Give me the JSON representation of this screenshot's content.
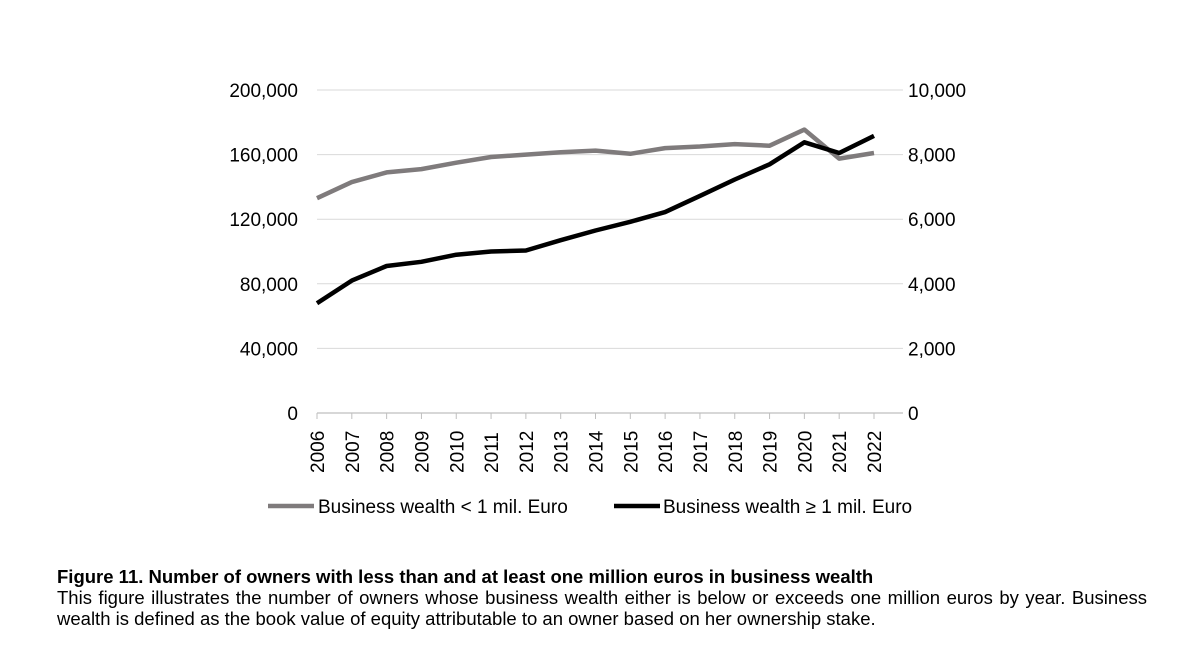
{
  "chart_data": {
    "type": "line",
    "x": [
      2006,
      2007,
      2008,
      2009,
      2010,
      2011,
      2012,
      2013,
      2014,
      2015,
      2016,
      2017,
      2018,
      2019,
      2020,
      2021,
      2022
    ],
    "x_tick_labels": [
      "2006",
      "2007",
      "2008",
      "2009",
      "2010",
      "2011",
      "2012",
      "2013",
      "2014",
      "2015",
      "2016",
      "2017",
      "2018",
      "2019",
      "2020",
      "2021",
      "2022"
    ],
    "y_left_ticks": [
      0,
      40000,
      80000,
      120000,
      160000,
      200000
    ],
    "y_left_tick_labels": [
      "0",
      "40,000",
      "80,000",
      "120,000",
      "160,000",
      "200,000"
    ],
    "y_right_ticks": [
      0,
      2000,
      4000,
      6000,
      8000,
      10000
    ],
    "y_right_tick_labels": [
      "0",
      "2,000",
      "4,000",
      "6,000",
      "8,000",
      "10,000"
    ],
    "ylim_left": [
      0,
      200000
    ],
    "ylim_right": [
      0,
      10000
    ],
    "grid": "horizontal",
    "legend_position": "bottom",
    "series": [
      {
        "name": "Business wealth < 1 mil. Euro",
        "axis": "left",
        "color": "#7f7b7c",
        "values": [
          133000,
          143000,
          149000,
          151000,
          155000,
          158500,
          160000,
          161500,
          162500,
          160500,
          164000,
          165000,
          166500,
          165500,
          175500,
          157500,
          161000
        ]
      },
      {
        "name": "Business wealth ≥ 1 mil. Euro",
        "axis": "right",
        "color": "#000000",
        "values": [
          3400,
          4100,
          4550,
          4680,
          4900,
          5000,
          5030,
          5350,
          5650,
          5920,
          6220,
          6720,
          7230,
          7700,
          8380,
          8050,
          8580
        ]
      }
    ]
  },
  "caption": {
    "title": "Figure 11. Number of owners with less than and at least one million euros in business wealth",
    "text": "This figure illustrates the number of owners whose business wealth either is below or exceeds one million euros by year. Business wealth is defined as the book value of equity attributable to an owner based on her ownership stake."
  }
}
